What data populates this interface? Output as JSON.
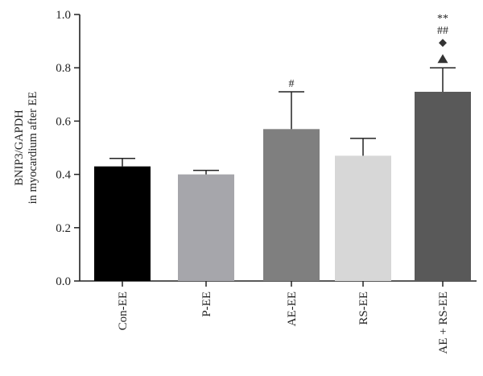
{
  "chart_data": {
    "type": "bar",
    "ylabel_lines": [
      "BNIP3/GAPDH",
      "in myocardium after EE"
    ],
    "ylim": [
      0,
      1.0
    ],
    "yticks": [
      "0.0",
      "0.2",
      "0.4",
      "0.6",
      "0.8",
      "1.0"
    ],
    "categories": [
      "Con-EE",
      "P-EE",
      "AE-EE",
      "RS-EE",
      "AE + RS-EE"
    ],
    "values": [
      0.43,
      0.4,
      0.57,
      0.47,
      0.71
    ],
    "errors": [
      0.03,
      0.015,
      0.14,
      0.065,
      0.09
    ],
    "colors": [
      "#000000",
      "#a6a6ab",
      "#7f7f7f",
      "#d7d7d7",
      "#595959"
    ],
    "annotations": [
      [],
      [],
      [
        {
          "type": "text",
          "text": "#"
        }
      ],
      [],
      [
        {
          "type": "triangle"
        },
        {
          "type": "diamond"
        },
        {
          "type": "text",
          "text": "##"
        },
        {
          "type": "text",
          "text": "**"
        }
      ]
    ],
    "grid": false,
    "legend": "none"
  }
}
